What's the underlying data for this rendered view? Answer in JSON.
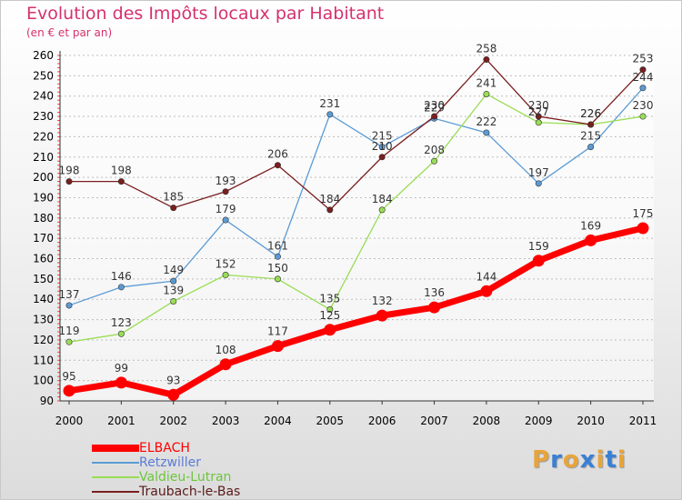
{
  "chart_data": {
    "type": "line",
    "title": "Evolution des Impôts locaux par Habitant",
    "subtitle": "(en € et par an)",
    "xlabel": "",
    "ylabel": "",
    "ylim": [
      90,
      260
    ],
    "yticks": [
      90,
      100,
      110,
      120,
      130,
      140,
      150,
      160,
      170,
      180,
      190,
      200,
      210,
      220,
      230,
      240,
      250,
      260
    ],
    "categories": [
      "2000",
      "2001",
      "2002",
      "2003",
      "2004",
      "2005",
      "2006",
      "2007",
      "2008",
      "2009",
      "2010",
      "2011"
    ],
    "legend_position": "bottom-left",
    "series": [
      {
        "name": "ELBACH",
        "color": "#ff0000",
        "label_color": "#ff0000",
        "emphasis": true,
        "values": [
          95,
          99,
          93,
          108,
          117,
          125,
          132,
          136,
          144,
          159,
          169,
          175
        ]
      },
      {
        "name": "Retzwiller",
        "color": "#5b9bd5",
        "label_color": "#5b7bd5",
        "emphasis": false,
        "values": [
          137,
          146,
          149,
          179,
          161,
          231,
          215,
          229,
          222,
          197,
          215,
          244
        ]
      },
      {
        "name": "Valdieu-Lutran",
        "color": "#99dd55",
        "label_color": "#6cc63a",
        "emphasis": false,
        "values": [
          119,
          123,
          139,
          152,
          150,
          135,
          184,
          208,
          241,
          227,
          226,
          230
        ]
      },
      {
        "name": "Traubach-le-Bas",
        "color": "#7a1e1e",
        "label_color": "#5b1a1a",
        "emphasis": false,
        "values": [
          198,
          198,
          185,
          193,
          206,
          184,
          210,
          230,
          258,
          230,
          226,
          253
        ]
      }
    ]
  },
  "brand": {
    "letters": [
      "P",
      "r",
      "o",
      "x",
      "i",
      "t",
      "i"
    ],
    "colors": [
      "#e8a43a",
      "#3a7fd4",
      "#e8a43a",
      "#3a7fd4",
      "#e8a43a",
      "#3a7fd4",
      "#e8a43a"
    ]
  }
}
